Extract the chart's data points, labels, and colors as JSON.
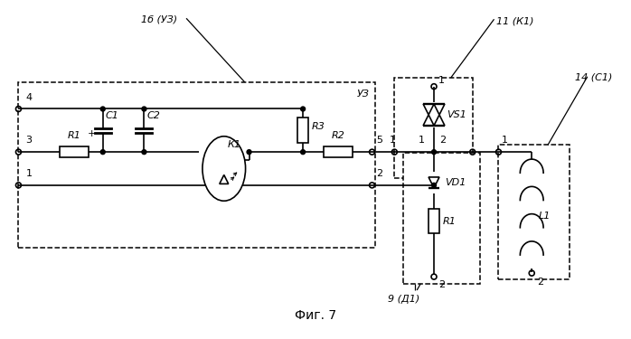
{
  "bg_color": "#ffffff",
  "line_color": "#000000",
  "title": "Фиг. 7",
  "label_uz3_outer": "1б (УЗ)",
  "label_uz3_inner": "УЗ",
  "label_k1_box": "11 (К1)",
  "label_d1_box": "9 (Д1)",
  "label_c1_box": "14 (С1)"
}
